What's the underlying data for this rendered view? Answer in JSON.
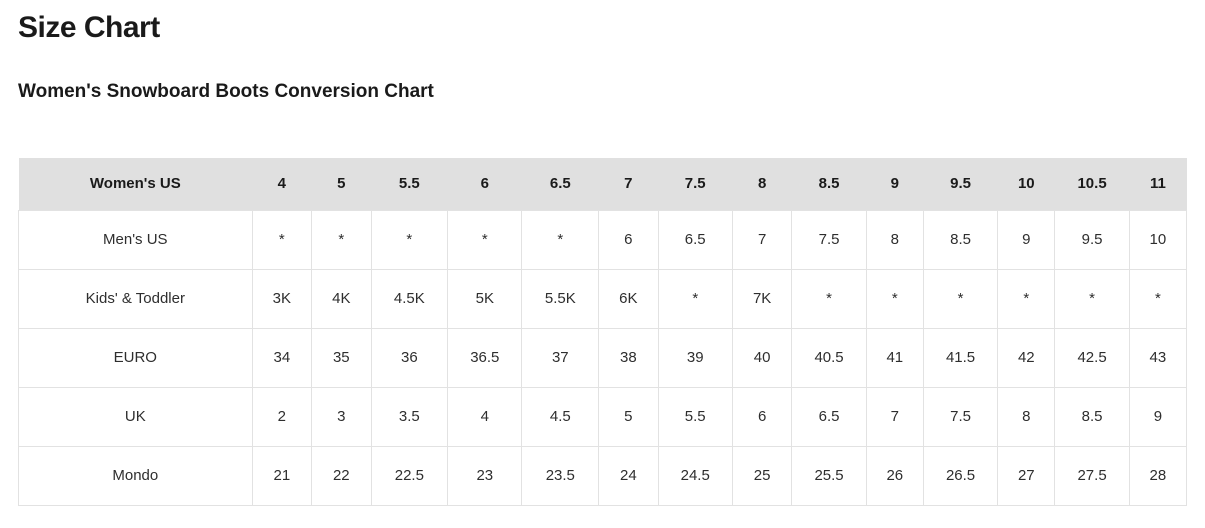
{
  "page": {
    "title": "Size Chart",
    "subtitle": "Women's Snowboard Boots Conversion Chart"
  },
  "chart_data": {
    "type": "table",
    "title": "Women's Snowboard Boots Conversion Chart",
    "header": {
      "label": "Women's US",
      "columns": [
        "4",
        "5",
        "5.5",
        "6",
        "6.5",
        "7",
        "7.5",
        "8",
        "8.5",
        "9",
        "9.5",
        "10",
        "10.5",
        "11"
      ]
    },
    "rows": [
      {
        "label": "Men's US",
        "values": [
          "*",
          "*",
          "*",
          "*",
          "*",
          "6",
          "6.5",
          "7",
          "7.5",
          "8",
          "8.5",
          "9",
          "9.5",
          "10"
        ]
      },
      {
        "label": "Kids' & Toddler",
        "values": [
          "3K",
          "4K",
          "4.5K",
          "5K",
          "5.5K",
          "6K",
          "*",
          "7K",
          "*",
          "*",
          "*",
          "*",
          "*",
          "*"
        ]
      },
      {
        "label": "EURO",
        "values": [
          "34",
          "35",
          "36",
          "36.5",
          "37",
          "38",
          "39",
          "40",
          "40.5",
          "41",
          "41.5",
          "42",
          "42.5",
          "43"
        ]
      },
      {
        "label": "UK",
        "values": [
          "2",
          "3",
          "3.5",
          "4",
          "4.5",
          "5",
          "5.5",
          "6",
          "6.5",
          "7",
          "7.5",
          "8",
          "8.5",
          "9"
        ]
      },
      {
        "label": "Mondo",
        "values": [
          "21",
          "22",
          "22.5",
          "23",
          "23.5",
          "24",
          "24.5",
          "25",
          "25.5",
          "26",
          "26.5",
          "27",
          "27.5",
          "28"
        ]
      }
    ]
  },
  "colors": {
    "page_background": "#ffffff",
    "header_row_background": "#e0e0e0",
    "cell_border": "#e2e2e2",
    "heading_text": "#1a1a1a",
    "cell_text": "#2e2e2e"
  }
}
